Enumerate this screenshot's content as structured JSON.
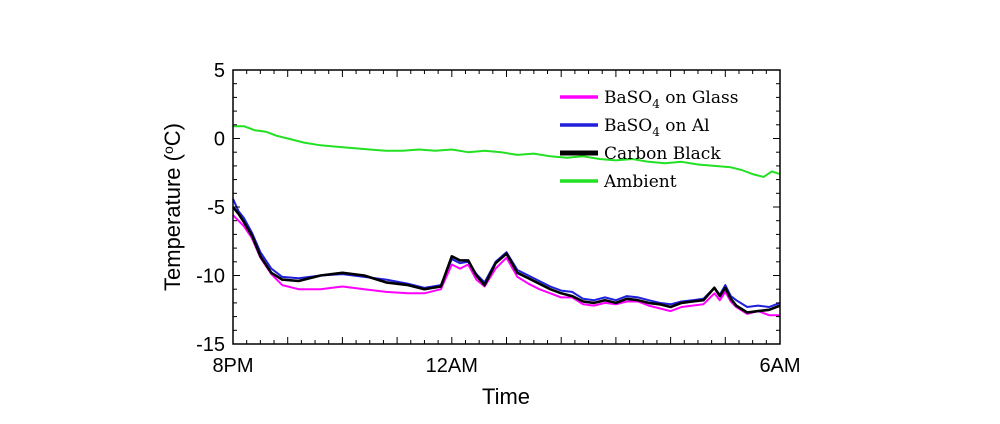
{
  "chart_data": {
    "type": "line",
    "xlabel": "Time",
    "ylabel": "Temperature (",
    "ylabel_sup": "o",
    "ylabel_tail": "C)",
    "xlim": [
      0,
      10
    ],
    "ylim": [
      -15,
      5
    ],
    "x_ticks": [
      {
        "x": 0,
        "label": "8PM"
      },
      {
        "x": 4,
        "label": "12AM"
      },
      {
        "x": 10,
        "label": "6AM"
      }
    ],
    "y_ticks": [
      {
        "y": 5,
        "label": "5"
      },
      {
        "y": 0,
        "label": "0"
      },
      {
        "y": -5,
        "label": "-5"
      },
      {
        "y": -10,
        "label": "-10"
      },
      {
        "y": -15,
        "label": "-15"
      }
    ],
    "legend_position": "top-right",
    "series": [
      {
        "name_prefix": "BaSO",
        "name_sub": "4",
        "name_suffix": " on Glass",
        "color": "#ff00ff",
        "x": [
          0,
          0.1,
          0.2,
          0.35,
          0.5,
          0.7,
          0.9,
          1.2,
          1.6,
          2.0,
          2.4,
          2.8,
          3.2,
          3.5,
          3.8,
          4.0,
          4.15,
          4.3,
          4.45,
          4.6,
          4.8,
          5.0,
          5.2,
          5.4,
          5.6,
          5.8,
          6.0,
          6.2,
          6.4,
          6.6,
          6.8,
          7.0,
          7.2,
          7.4,
          7.6,
          7.8,
          8.0,
          8.2,
          8.4,
          8.6,
          8.8,
          8.9,
          9.0,
          9.1,
          9.2,
          9.4,
          9.6,
          9.8,
          10.0
        ],
        "y": [
          -5.6,
          -6.0,
          -6.4,
          -7.3,
          -8.7,
          -9.9,
          -10.7,
          -11.0,
          -11.0,
          -10.8,
          -11.0,
          -11.2,
          -11.3,
          -11.3,
          -11.0,
          -9.2,
          -9.5,
          -9.2,
          -10.3,
          -10.8,
          -9.5,
          -8.7,
          -10.1,
          -10.6,
          -11.0,
          -11.3,
          -11.6,
          -11.6,
          -12.1,
          -12.2,
          -12.0,
          -12.1,
          -11.9,
          -11.9,
          -12.2,
          -12.4,
          -12.6,
          -12.3,
          -12.2,
          -12.1,
          -11.3,
          -11.8,
          -11.2,
          -11.9,
          -12.3,
          -12.8,
          -12.6,
          -12.9,
          -12.9
        ]
      },
      {
        "name_prefix": "BaSO",
        "name_sub": "4",
        "name_suffix": " on Al",
        "color": "#1f1fdc",
        "x": [
          0,
          0.1,
          0.2,
          0.35,
          0.5,
          0.7,
          0.9,
          1.2,
          1.6,
          2.0,
          2.4,
          2.8,
          3.2,
          3.5,
          3.8,
          4.0,
          4.15,
          4.3,
          4.45,
          4.6,
          4.8,
          5.0,
          5.2,
          5.4,
          5.6,
          5.8,
          6.0,
          6.2,
          6.4,
          6.6,
          6.8,
          7.0,
          7.2,
          7.4,
          7.6,
          7.8,
          8.0,
          8.2,
          8.4,
          8.6,
          8.8,
          8.9,
          9.0,
          9.1,
          9.2,
          9.4,
          9.6,
          9.8,
          10.0
        ],
        "y": [
          -4.4,
          -5.3,
          -5.8,
          -6.9,
          -8.3,
          -9.5,
          -10.1,
          -10.2,
          -10.0,
          -9.9,
          -10.1,
          -10.3,
          -10.6,
          -10.9,
          -10.7,
          -8.8,
          -9.1,
          -9.0,
          -9.9,
          -10.5,
          -9.0,
          -8.3,
          -9.6,
          -10.0,
          -10.4,
          -10.8,
          -11.1,
          -11.2,
          -11.7,
          -11.8,
          -11.6,
          -11.8,
          -11.5,
          -11.6,
          -11.8,
          -12.0,
          -12.1,
          -11.9,
          -11.8,
          -11.7,
          -10.9,
          -11.4,
          -10.7,
          -11.5,
          -11.8,
          -12.3,
          -12.2,
          -12.3,
          -12.0
        ]
      },
      {
        "name_prefix": "Carbon Black",
        "name_sub": "",
        "name_suffix": "",
        "color": "#000000",
        "x": [
          0,
          0.1,
          0.2,
          0.35,
          0.5,
          0.7,
          0.9,
          1.2,
          1.6,
          2.0,
          2.4,
          2.8,
          3.2,
          3.5,
          3.8,
          4.0,
          4.15,
          4.3,
          4.45,
          4.6,
          4.8,
          5.0,
          5.2,
          5.4,
          5.6,
          5.8,
          6.0,
          6.2,
          6.4,
          6.6,
          6.8,
          7.0,
          7.2,
          7.4,
          7.6,
          7.8,
          8.0,
          8.2,
          8.4,
          8.6,
          8.8,
          8.9,
          9.0,
          9.1,
          9.2,
          9.4,
          9.6,
          9.8,
          10.0
        ],
        "y": [
          -5.0,
          -5.5,
          -6.1,
          -7.1,
          -8.6,
          -9.8,
          -10.3,
          -10.4,
          -10.0,
          -9.8,
          -10.0,
          -10.5,
          -10.7,
          -11.0,
          -10.8,
          -8.6,
          -8.9,
          -8.9,
          -10.0,
          -10.7,
          -9.1,
          -8.4,
          -9.8,
          -10.2,
          -10.6,
          -11.0,
          -11.3,
          -11.5,
          -11.9,
          -12.0,
          -11.8,
          -12.0,
          -11.7,
          -11.8,
          -12.0,
          -12.1,
          -12.3,
          -12.0,
          -11.9,
          -11.8,
          -10.9,
          -11.5,
          -10.9,
          -11.7,
          -12.2,
          -12.7,
          -12.6,
          -12.5,
          -12.2
        ]
      },
      {
        "name_prefix": "Ambient",
        "name_sub": "",
        "name_suffix": "",
        "color": "#22e022",
        "x": [
          0,
          0.2,
          0.4,
          0.6,
          0.8,
          1.0,
          1.3,
          1.6,
          1.9,
          2.2,
          2.5,
          2.8,
          3.1,
          3.4,
          3.7,
          4.0,
          4.3,
          4.6,
          4.9,
          5.2,
          5.5,
          5.8,
          6.1,
          6.4,
          6.7,
          7.0,
          7.3,
          7.6,
          7.9,
          8.2,
          8.5,
          8.8,
          9.1,
          9.3,
          9.5,
          9.7,
          9.85,
          10.0
        ],
        "y": [
          0.9,
          0.9,
          0.6,
          0.5,
          0.2,
          0.0,
          -0.3,
          -0.5,
          -0.6,
          -0.7,
          -0.8,
          -0.9,
          -0.9,
          -0.8,
          -0.9,
          -0.8,
          -1.0,
          -0.9,
          -1.0,
          -1.2,
          -1.1,
          -1.3,
          -1.4,
          -1.3,
          -1.5,
          -1.6,
          -1.5,
          -1.7,
          -1.8,
          -1.7,
          -1.9,
          -2.0,
          -2.1,
          -2.3,
          -2.6,
          -2.8,
          -2.4,
          -2.6
        ]
      }
    ]
  }
}
